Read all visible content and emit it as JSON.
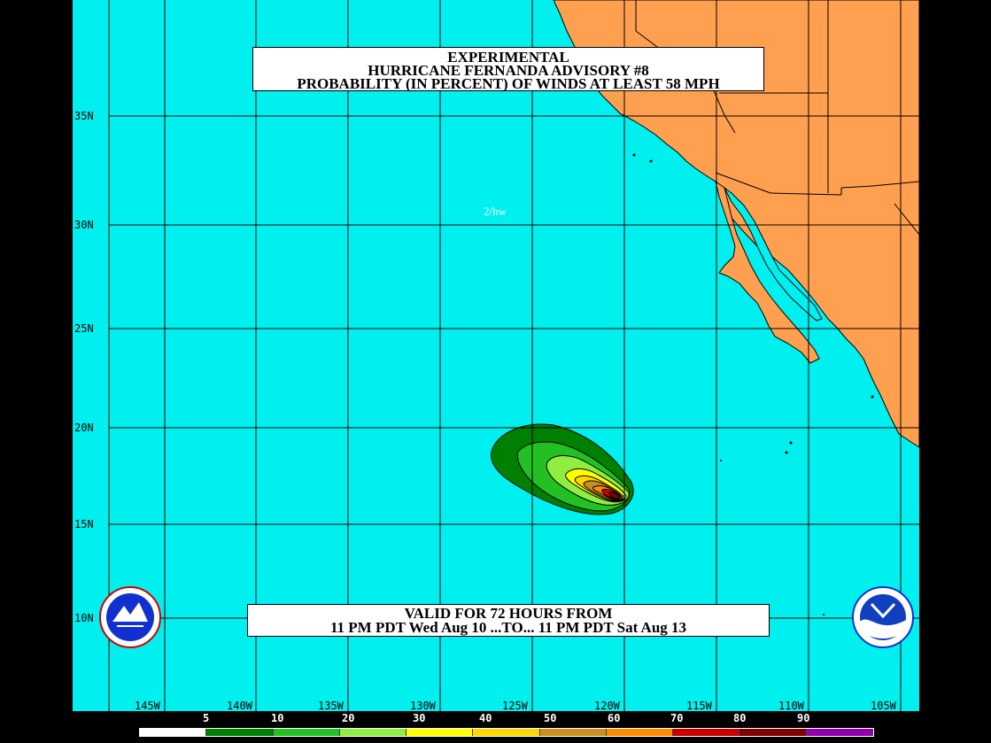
{
  "title": {
    "line1": "EXPERIMENTAL",
    "line2": "HURRICANE FERNANDA ADVISORY #8",
    "line3": "PROBABILITY (IN PERCENT) OF WINDS AT LEAST 58 MPH"
  },
  "valid": {
    "line1": "VALID FOR 72 HOURS FROM",
    "line2": "11 PM PDT Wed Aug 10 ...TO... 11 PM PDT Sat Aug 13"
  },
  "initials": "2/hw",
  "lat_labels": [
    "35N",
    "30N",
    "25N",
    "20N",
    "15N",
    "10N"
  ],
  "lon_labels": [
    "145W",
    "140W",
    "135W",
    "130W",
    "125W",
    "120W",
    "115W",
    "110W",
    "105W"
  ],
  "legend": {
    "labels": [
      "5",
      "10",
      "20",
      "30",
      "40",
      "50",
      "60",
      "70",
      "80",
      "90"
    ],
    "colors": [
      "#ffffff",
      "#008000",
      "#22c022",
      "#90ee40",
      "#ffff00",
      "#ffd700",
      "#c89020",
      "#ff8c00",
      "#c80000",
      "#800000",
      "#9000b0"
    ]
  },
  "colors": {
    "ocean": "#00f0f0",
    "land": "#ffa050",
    "grid": "#000000"
  },
  "icons": {
    "left_logo": "nws-logo-icon",
    "right_logo": "noaa-logo-icon"
  }
}
